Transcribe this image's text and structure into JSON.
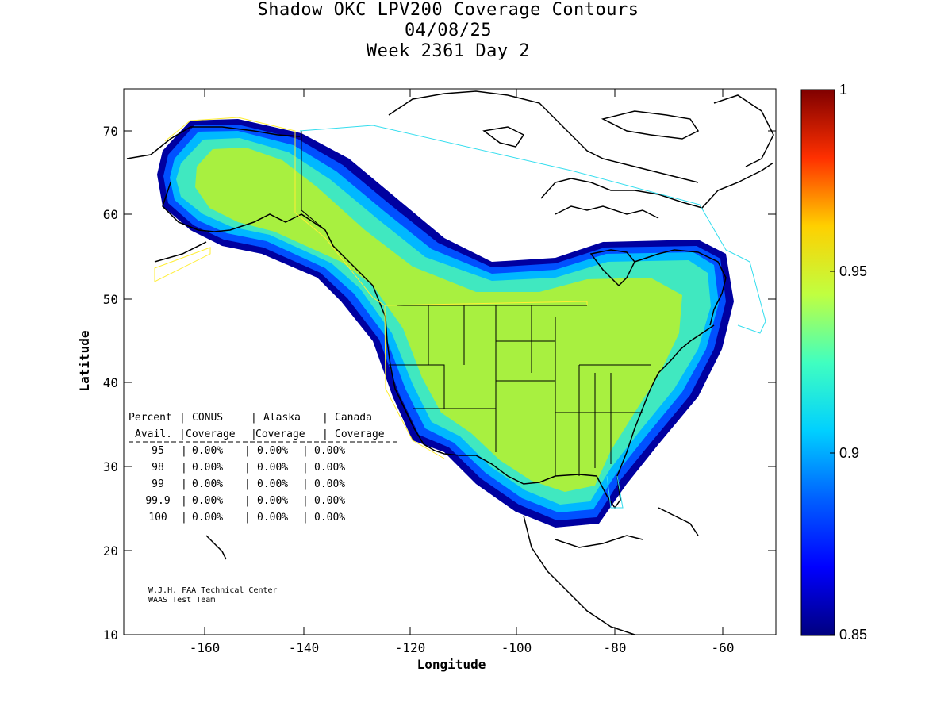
{
  "title": {
    "line1": "Shadow OKC LPV200 Coverage Contours",
    "line2": "04/08/25",
    "line3": "Week 2361 Day 2"
  },
  "axes": {
    "xlabel": "Longitude",
    "ylabel": "Latitude",
    "xticks": [
      "-160",
      "-140",
      "-120",
      "-100",
      "-80",
      "-60"
    ],
    "yticks": [
      "70",
      "60",
      "50",
      "40",
      "30",
      "20",
      "10"
    ],
    "xlim": [
      -175,
      -50
    ],
    "ylim": [
      10,
      75
    ]
  },
  "colorbar": {
    "min": 0.85,
    "max": 1,
    "ticks": [
      "1",
      "0.95",
      "0.9",
      "0.85"
    ]
  },
  "stats_table": {
    "header1": [
      "Percent",
      "CONUS",
      "Alaska",
      "Canada"
    ],
    "header2": [
      "Avail.",
      "Coverage",
      "Coverage",
      "Coverage"
    ],
    "rows": [
      {
        "pct": "95",
        "conus": "0.00%",
        "alaska": "0.00%",
        "canada": "0.00%"
      },
      {
        "pct": "98",
        "conus": "0.00%",
        "alaska": "0.00%",
        "canada": "0.00%"
      },
      {
        "pct": "99",
        "conus": "0.00%",
        "alaska": "0.00%",
        "canada": "0.00%"
      },
      {
        "pct": "99.9",
        "conus": "0.00%",
        "alaska": "0.00%",
        "canada": "0.00%"
      },
      {
        "pct": "100",
        "conus": "0.00%",
        "alaska": "0.00%",
        "canada": "0.00%"
      }
    ]
  },
  "credit": {
    "line1": "W.J.H. FAA Technical Center",
    "line2": "WAAS Test Team"
  },
  "colors": {
    "core": "#a8f040",
    "cyan": "#40e8c0",
    "outline_yellow": "#ffee33",
    "outline_cyan": "#33ddee"
  }
}
